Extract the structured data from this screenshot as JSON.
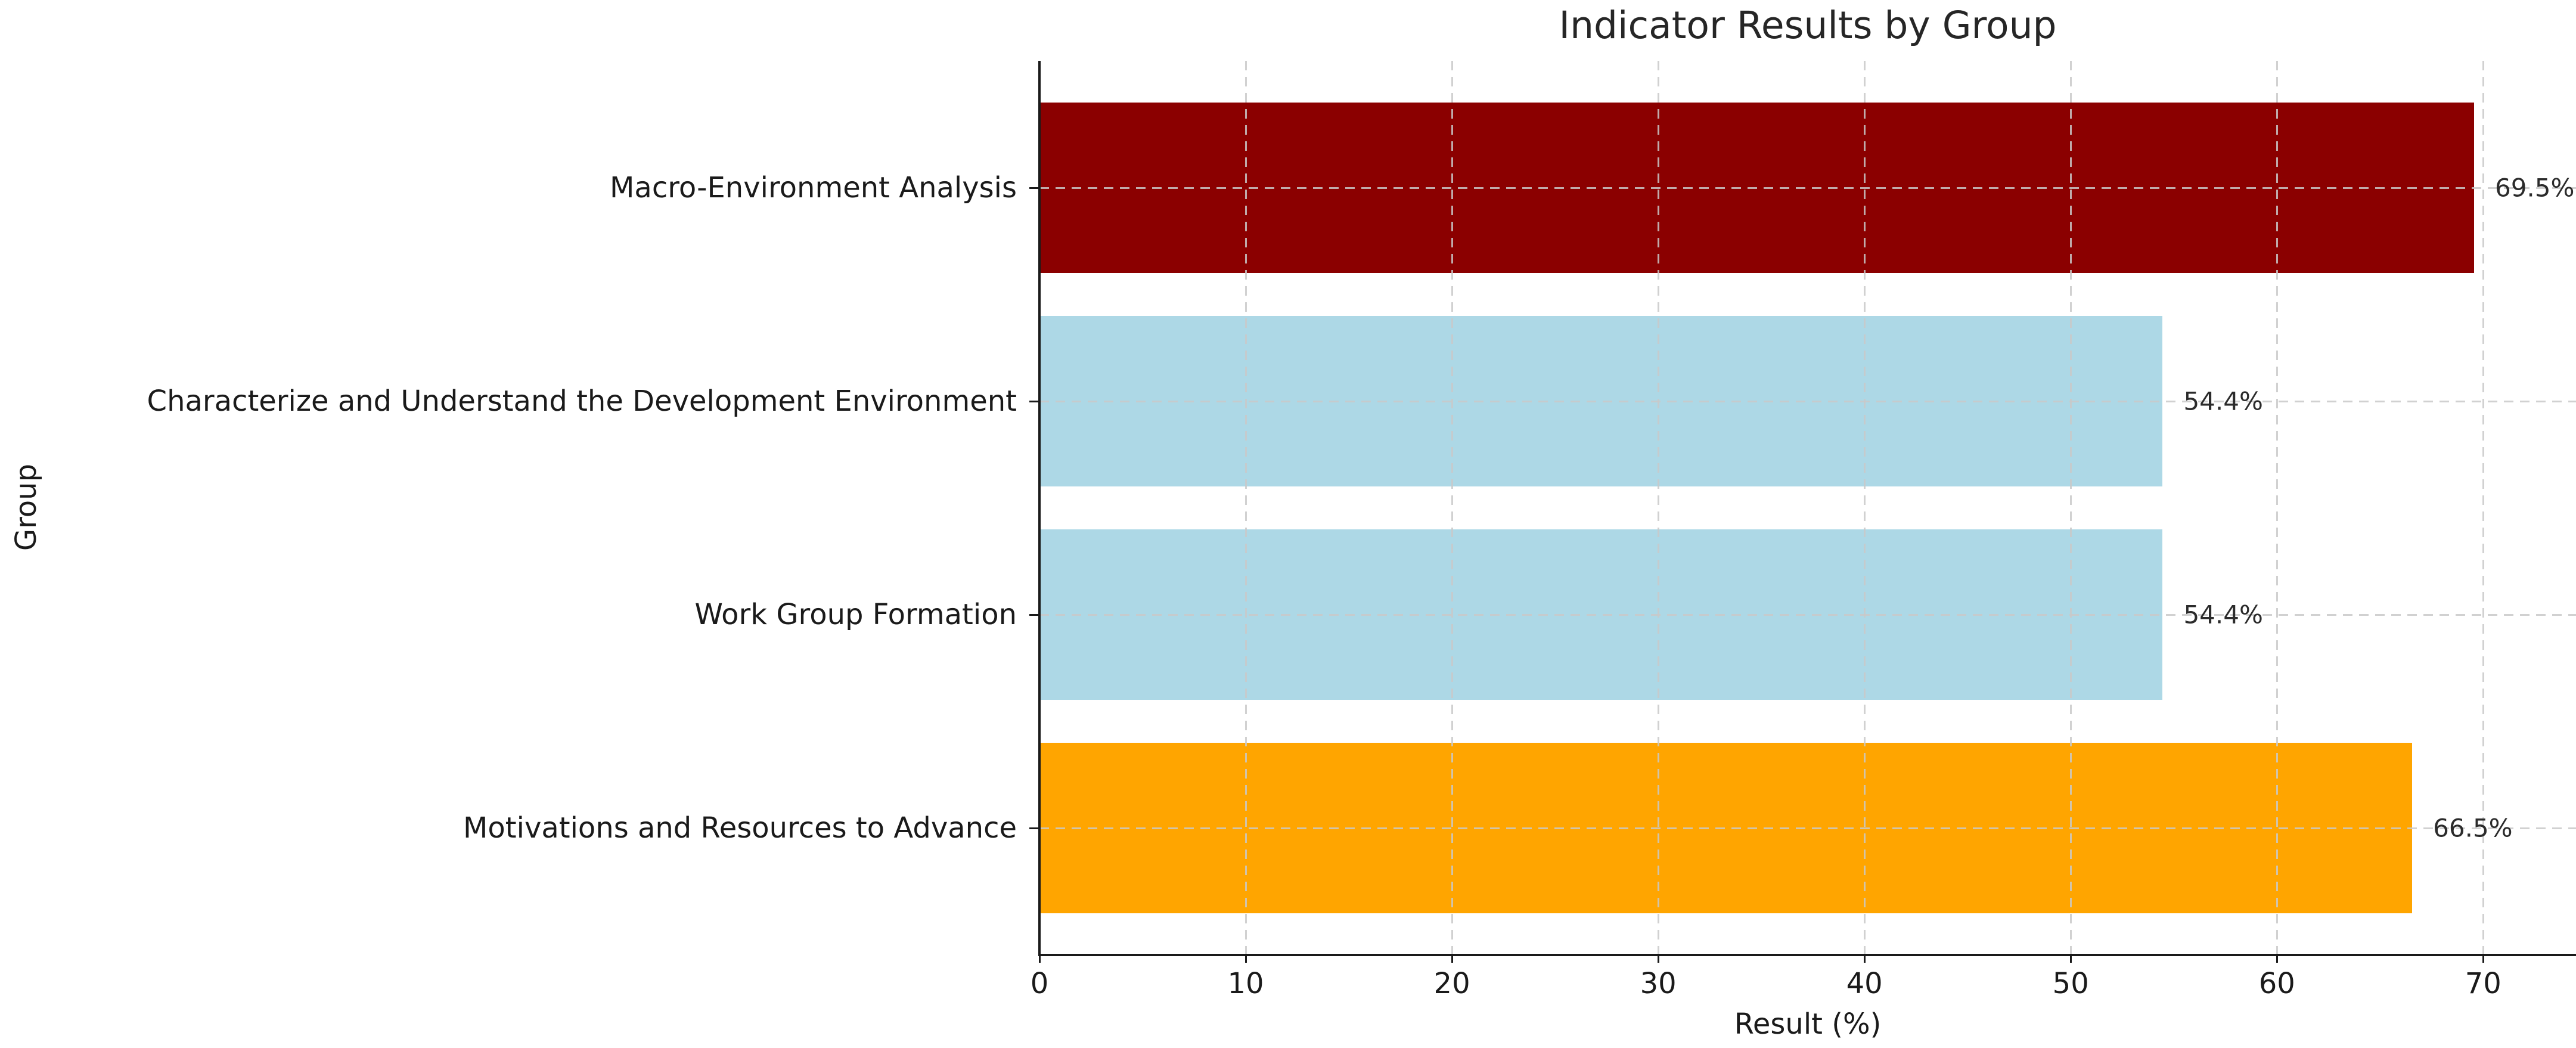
{
  "figure": {
    "background": "#ffffff"
  },
  "chart_data": {
    "type": "bar",
    "orientation": "horizontal",
    "title": "Indicator Results by Group",
    "xlabel": "Result (%)",
    "ylabel": "Group",
    "categories": [
      "Macro-Environment Analysis",
      "Characterize and Understand the Development Environment",
      "Work Group Formation",
      "Motivations and Resources to Advance"
    ],
    "values": [
      69.5,
      54.4,
      54.4,
      66.5
    ],
    "value_labels": [
      "69.5%",
      "54.4%",
      "54.4%",
      "66.5%"
    ],
    "bar_colors": [
      "#8B0000",
      "#ADD8E6",
      "#ADD8E6",
      "#FFA500"
    ],
    "xlim": [
      0,
      74.5
    ],
    "xticks": [
      0,
      10,
      20,
      30,
      40,
      50,
      60,
      70
    ],
    "xtick_labels": [
      "0",
      "10",
      "20",
      "30",
      "40",
      "50",
      "60",
      "70"
    ],
    "grid": {
      "style": "dashed",
      "color": "#c9c9c9",
      "which": "both",
      "over_bars": true
    },
    "legend": "none",
    "text_color": "#1a1a1a",
    "spine_color": "#1a1a1a"
  }
}
